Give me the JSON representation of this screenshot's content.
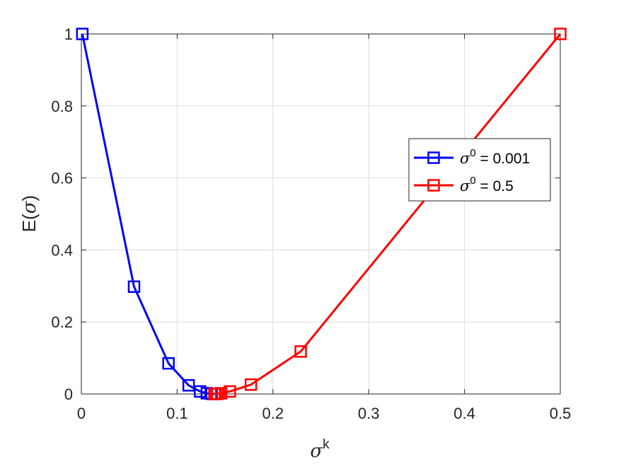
{
  "chart_data": {
    "type": "line",
    "xlabel": {
      "base": "σ",
      "sup": "k"
    },
    "ylabel": {
      "prefix": "E(",
      "sym": "σ",
      "suffix": ")"
    },
    "xlim": [
      0,
      0.5
    ],
    "ylim": [
      0,
      1
    ],
    "xticks": [
      0,
      0.1,
      0.2,
      0.3,
      0.4,
      0.5
    ],
    "xtick_labels": [
      "0",
      "0.1",
      "0.2",
      "0.3",
      "0.4",
      "0.5"
    ],
    "yticks": [
      0,
      0.2,
      0.4,
      0.6,
      0.8,
      1
    ],
    "ytick_labels": [
      "0",
      "0.2",
      "0.4",
      "0.6",
      "0.8",
      "1"
    ],
    "grid": true,
    "legend_position": "right",
    "series": [
      {
        "legend_sym": "σ",
        "legend_sup": "0",
        "legend_rest": " = 0.001",
        "color": "#0000ff",
        "marker": "square",
        "x": [
          0.001,
          0.055,
          0.091,
          0.112,
          0.124,
          0.131,
          0.136,
          0.139
        ],
        "y": [
          1.0,
          0.298,
          0.085,
          0.024,
          0.007,
          0.002,
          0.0005,
          0.0001
        ]
      },
      {
        "legend_sym": "σ",
        "legend_sup": "0",
        "legend_rest": " = 0.5",
        "color": "#ff0000",
        "marker": "square",
        "x": [
          0.5,
          0.229,
          0.177,
          0.155,
          0.146,
          0.142,
          0.14,
          0.139
        ],
        "y": [
          1.0,
          0.118,
          0.026,
          0.007,
          0.002,
          0.0006,
          0.0002,
          0.0001
        ]
      }
    ]
  }
}
